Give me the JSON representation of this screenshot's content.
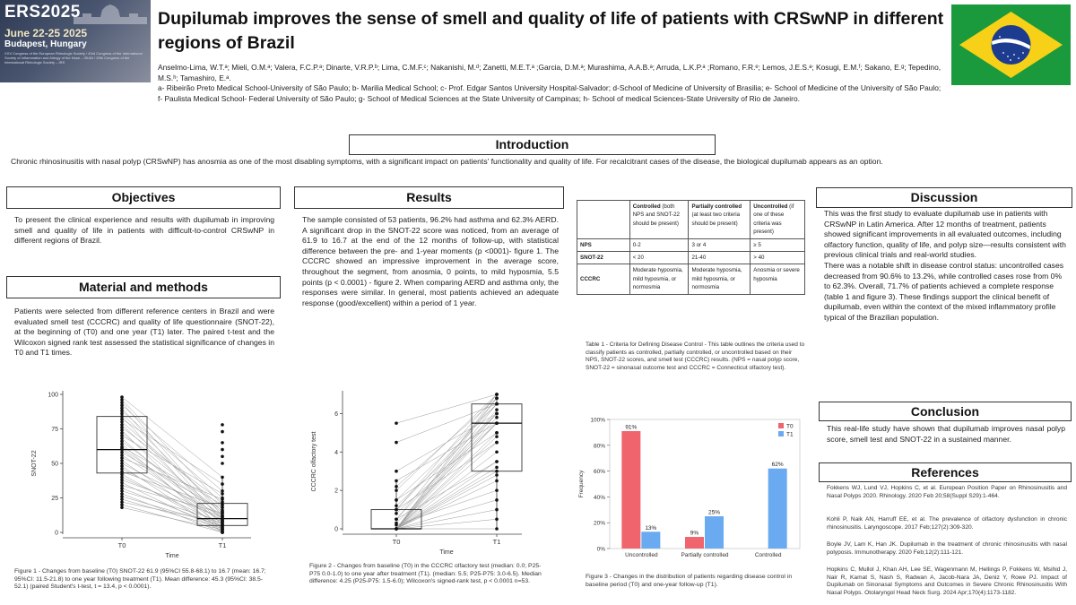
{
  "header": {
    "conference_logo": {
      "name": "ERS2025",
      "dates": "June 22-25 2025",
      "city": "Budapest, Hungary",
      "fine_print": "XXX Congress of the European Rhinologic Society / 43rd Congress of the International Society of Inflammation and Allergy of the Nose – ISIAN / 25th Congress of the International Rhinologic Society – IRS"
    },
    "title": "Dupilumab improves the sense of smell and quality of life of patients with CRSwNP in different regions of Brazil",
    "authors": "Anselmo-Lima, W.T.ᵃ; Mieli, O.M.ᵃ; Valera, F.C.P.ᵃ; Dinarte, V.R.P.ᵇ; Lima, C.M.F.ᶜ; Nakanishi, M.ᵈ; Zanetti, M.E.T.ᵃ ;Garcia, D.M.ᵃ; Murashima, A.A.B.ᵃ; Arruda, L.K.P.ᵃ ;Romano, F.R.ᵉ; Lemos, J.E.S.ᵃ; Kosugi, E.M.ᶠ; Sakano, E.ᵍ; Tepedino, M.S.ʰ; Tamashiro, E.ᵃ.",
    "affiliations": "a- Ribeirão Preto Medical School-University of São Paulo; b- Marilia Medical School; c- Prof. Edgar Santos University Hospital-Salvador; d-School of Medicine of University of Brasilia; e- School of Medicine of the University of São Paulo; f- Paulista Medical School- Federal University of São Paulo; g- School of Medical Sciences at the State University of Campinas; h- School of medical Sciences-State University of Rio de Janeiro.",
    "flag": "brazil-flag"
  },
  "introduction": {
    "heading": "Introduction",
    "text": "Chronic rhinosinusitis with nasal polyp (CRSwNP) has anosmia as one of the most disabling symptoms, with a significant impact on patients' functionality and quality of life. For recalcitrant cases of the disease, the biological dupilumab appears as an option."
  },
  "objectives": {
    "heading": "Objectives",
    "text": "To present the clinical experience and results with dupilumab in improving smell and quality of life in patients with difficult-to-control CRSwNP in different regions of Brazil."
  },
  "methods": {
    "heading": "Material and methods",
    "text": "Patients were selected from different reference centers in Brazil and were evaluated smell test (CCCRC) and quality of life questionnaire (SNOT-22), at the beginning of (T0) and one year (T1) later. The paired t-test and the Wilcoxon signed rank test assessed the statistical significance of changes in T0 and T1 times."
  },
  "results": {
    "heading": "Results",
    "text": "The sample consisted of 53 patients, 96.2% had asthma and 62.3% AERD. A significant drop in the SNOT-22 score was noticed, from an average of 61.9 to 16.7 at the end of the 12 months of follow-up, with statistical difference between the pre- and 1-year moments (p <0001)- figure 1. The CCCRC showed an impressive improvement in the average score, throughout the segment, from anosmia, 0 points, to mild hyposmia, 5.5 points (p < 0.0001) - figure 2. When comparing AERD and asthma only, the responses were similar. In general, most patients achieved an adequate response (good/excellent) within a period of 1 year."
  },
  "table1": {
    "headers": [
      {
        "bold": "Controlled",
        "rest": " (both NPS and SNOT-22 should be present)"
      },
      {
        "bold": "Partially controlled",
        "rest": " (at least two criteria should be present)"
      },
      {
        "bold": "Uncontrolled",
        "rest": " (if one of these criteria was present)"
      }
    ],
    "rows": [
      {
        "label": "NPS",
        "cells": [
          "0-2",
          "3 or 4",
          "≥ 5"
        ]
      },
      {
        "label": "SNOT-22",
        "cells": [
          "< 20",
          "21-40",
          "> 40"
        ]
      },
      {
        "label": "CCCRC",
        "cells": [
          "Moderate hyposmia, mild hyposmia, or normosmia",
          "Moderate hyposmia, mild hyposmia, or normosmia",
          "Anosmia or severe hyposmia"
        ]
      }
    ],
    "caption": "Table 1 - Criteria for Defining Disease Control - This table outlines the criteria used to classify patients as controlled, partially controlled, or uncontrolled based on their NPS, SNOT-22 scores, and smell test (CCCRC) results. (NPS = nasal polyp score, SNOT-22 = sinonasal outcome test and CCCRC = Connecticut olfactory test)."
  },
  "discussion": {
    "heading": "Discussion",
    "p1": "This was the first study to evaluate dupilumab use in patients with CRSwNP in Latin America. After 12 months of treatment, patients showed significant improvements in all evaluated outcomes, including olfactory function, quality of life, and polyp size—results consistent with previous clinical trials and real-world studies.",
    "p2": "There was a notable shift in disease control status: uncontrolled cases decreased from 90.6% to 13.2%, while controlled cases rose from 0% to 62.3%. Overall, 71.7% of patients achieved a complete response (table 1 and figure 3). These findings support the clinical benefit of dupilumab, even within the context of the mixed inflammatory profile typical of the Brazilian population."
  },
  "conclusion": {
    "heading": "Conclusion",
    "text": "This real-life study have shown that dupilumab improves nasal polyp score, smell test and SNOT-22 in a sustained manner."
  },
  "references": {
    "heading": "References",
    "items": [
      "Fokkens WJ, Lund VJ, Hopkins C, et al. European Position Paper on Rhinosinusitis and Nasal Polyps 2020. Rhinology. 2020 Feb 20;58(Suppl S29):1-464.",
      "Kohli P, Naik AN, Harruff EE, et al. The prevalence of olfactory dysfunction in chronic rhinosinusitis. Laryngoscope. 2017 Feb;127(2):309-320.",
      "Boyle JV, Lam K, Han JK. Dupilumab in the treatment of chronic rhinosinusitis with nasal polyposis. Immunotherapy. 2020 Feb;12(2):111-121.",
      "Hopkins C, Mullol J, Khan AH, Lee SE, Wagenmann M, Hellings P, Fokkens W, Msihid J, Nair R, Kamat S, Nash S, Radwan A, Jacob-Nara JA, Deniz Y, Rowe PJ. Impact of Dupilumab on Sinonasal Symptoms and Outcomes in Severe Chronic Rhinosinusitis With Nasal Polyps. Otolaryngol Head Neck Surg. 2024 Apr;170(4):1173-1182."
    ]
  },
  "figure_captions": {
    "fig1": "Figure 1 - Changes from baseline (T0) SNOT-22 61.9 (95%CI 55.8-68.1) to 16.7 (mean: 16.7; 95%CI: 11.5-21.8) to one year following treatment (T1). Mean difference: 45.3 (95%CI: 38.5-52.1) (paired Student's t-test, t = 13.4, p < 0.0001).",
    "fig2": "Figure 2 - Changes from baseline (T0) in the CCCRC olfactory test (median: 0.0; P25-P75 0.0-1.0) to one year after treatment (T1). (median: 5.5; P25-P75: 3.0-6.5). Median difference: 4.25 (P25-P75: 1.5-6.0); Wilcoxon's signed-rank test, p < 0.0001 n=53.",
    "fig3": "Figure 3 - Changes in the distribution of patients regarding disease control in baseline period (T0) and one-year follow-up (T1)."
  },
  "chart_data": [
    {
      "type": "box",
      "id": "fig1",
      "xlabel": "Time",
      "ylabel": "SNOT-22",
      "categories": [
        "T0",
        "T1"
      ],
      "yticks": [
        0,
        25,
        50,
        75,
        100
      ],
      "ylim": [
        0,
        100
      ],
      "boxes": [
        {
          "name": "T0",
          "q1": 43,
          "median": 60,
          "q3": 84,
          "min": 18,
          "max": 98
        },
        {
          "name": "T1",
          "q1": 5,
          "median": 10,
          "q3": 21,
          "min": 0,
          "max": 40
        }
      ],
      "paired": [
        [
          98,
          40
        ],
        [
          96,
          20
        ],
        [
          94,
          12
        ],
        [
          92,
          30
        ],
        [
          90,
          8
        ],
        [
          88,
          25
        ],
        [
          86,
          15
        ],
        [
          84,
          5
        ],
        [
          82,
          35
        ],
        [
          80,
          18
        ],
        [
          78,
          10
        ],
        [
          76,
          22
        ],
        [
          74,
          2
        ],
        [
          72,
          14
        ],
        [
          70,
          28
        ],
        [
          68,
          6
        ],
        [
          66,
          12
        ],
        [
          64,
          0
        ],
        [
          62,
          20
        ],
        [
          61,
          10
        ],
        [
          60,
          4
        ],
        [
          58,
          16
        ],
        [
          56,
          8
        ],
        [
          54,
          24
        ],
        [
          52,
          3
        ],
        [
          50,
          12
        ],
        [
          48,
          0
        ],
        [
          46,
          9
        ],
        [
          44,
          18
        ],
        [
          42,
          2
        ],
        [
          40,
          6
        ],
        [
          38,
          11
        ],
        [
          36,
          1
        ],
        [
          34,
          14
        ],
        [
          32,
          4
        ],
        [
          30,
          8
        ],
        [
          28,
          0
        ],
        [
          26,
          5
        ],
        [
          24,
          3
        ],
        [
          22,
          7
        ],
        [
          20,
          0
        ],
        [
          18,
          2
        ]
      ],
      "outliers_t1": [
        78,
        73,
        65,
        60,
        55,
        50
      ]
    },
    {
      "type": "box",
      "id": "fig2",
      "xlabel": "Time",
      "ylabel": "CCCRC olfactory test",
      "categories": [
        "T0",
        "T1"
      ],
      "yticks": [
        0,
        2,
        4,
        6
      ],
      "ylim": [
        0,
        7
      ],
      "boxes": [
        {
          "name": "T0",
          "q1": 0,
          "median": 0,
          "q3": 1,
          "min": 0,
          "max": 2.5
        },
        {
          "name": "T1",
          "q1": 3,
          "median": 5.5,
          "q3": 6.5,
          "min": 0,
          "max": 7
        }
      ],
      "paired": [
        [
          5.5,
          7
        ],
        [
          4.5,
          6.5
        ],
        [
          3,
          6
        ],
        [
          2.5,
          5.5
        ],
        [
          2.2,
          6.8
        ],
        [
          2,
          7
        ],
        [
          1.5,
          6.5
        ],
        [
          1.5,
          5
        ],
        [
          1.2,
          6
        ],
        [
          1,
          6.5
        ],
        [
          1,
          4.5
        ],
        [
          1,
          7
        ],
        [
          0.8,
          5.5
        ],
        [
          0.5,
          6
        ],
        [
          0.5,
          3.5
        ],
        [
          0.5,
          6.8
        ],
        [
          0.3,
          5.5
        ],
        [
          0.2,
          2
        ],
        [
          0,
          7
        ],
        [
          0,
          6.5
        ],
        [
          0,
          6
        ],
        [
          0,
          5.5
        ],
        [
          0,
          5
        ],
        [
          0,
          4.5
        ],
        [
          0,
          4
        ],
        [
          0,
          3.5
        ],
        [
          0,
          3
        ],
        [
          0,
          2.5
        ],
        [
          0,
          1.5
        ],
        [
          0,
          1
        ],
        [
          0,
          0.5
        ],
        [
          0,
          0
        ],
        [
          0,
          6.8
        ],
        [
          0,
          6.2
        ],
        [
          0,
          5.8
        ],
        [
          0,
          4.8
        ],
        [
          0,
          3.2
        ],
        [
          0,
          2.8
        ]
      ]
    },
    {
      "type": "bar",
      "id": "fig3",
      "ylabel": "Frequency",
      "categories": [
        "Uncontrolled",
        "Partially controlled",
        "Controlled"
      ],
      "yticks": [
        "0%",
        "20%",
        "40%",
        "60%",
        "80%",
        "100%"
      ],
      "ylim": [
        0,
        100
      ],
      "series": [
        {
          "name": "T0",
          "values": [
            91,
            9,
            0
          ],
          "color": "#f0646e"
        },
        {
          "name": "T1",
          "values": [
            13,
            25,
            62
          ],
          "color": "#6aaaf0"
        }
      ],
      "data_labels": [
        [
          "91%",
          "9%",
          ""
        ],
        [
          "13%",
          "25%",
          "62%"
        ]
      ],
      "legend": "top-right"
    }
  ]
}
